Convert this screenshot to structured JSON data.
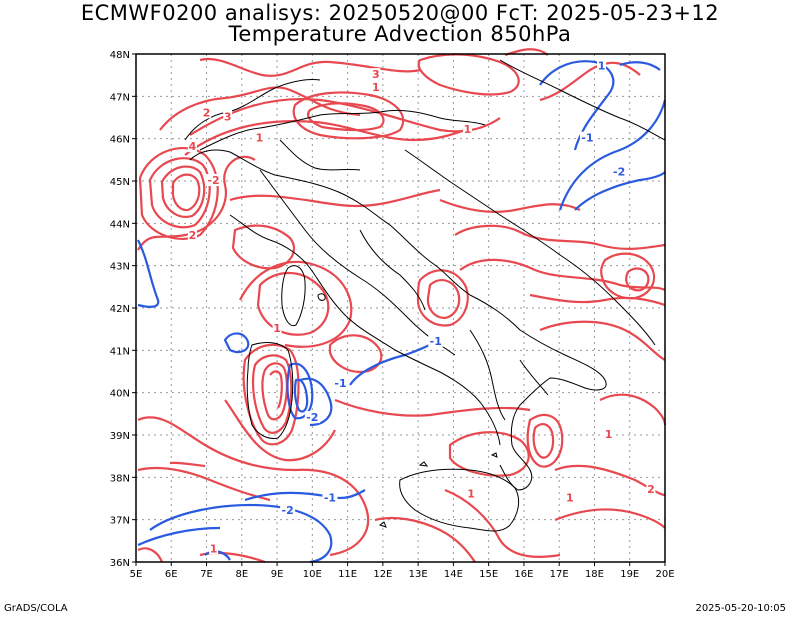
{
  "title_line1": "ECMWF0200 analisys: 20250520@00 FcT: 2025-05-23+12",
  "title_line2": "Temperature Advection 850hPa",
  "footer_left": "GrADS/COLA",
  "footer_right": "2025-05-20-10:05",
  "axes": {
    "lat_labels": [
      "48N",
      "47N",
      "46N",
      "45N",
      "44N",
      "43N",
      "42N",
      "41N",
      "40N",
      "39N",
      "38N",
      "37N",
      "36N"
    ],
    "lon_labels": [
      "5E",
      "6E",
      "7E",
      "8E",
      "9E",
      "10E",
      "11E",
      "12E",
      "13E",
      "14E",
      "15E",
      "16E",
      "17E",
      "18E",
      "19E",
      "20E"
    ],
    "lat_range": [
      36,
      48
    ],
    "lon_range": [
      5,
      20
    ],
    "grid": true
  },
  "colors": {
    "positive_contour": "#e8484f",
    "negative_contour": "#2a5ae0",
    "coastline": "#000000",
    "grid": "#9a9a9a"
  },
  "contour_labels": [
    {
      "text": "1",
      "lon": 11.8,
      "lat": 47.2,
      "sign": "pos"
    },
    {
      "text": "1",
      "lon": 18.2,
      "lat": 47.7,
      "sign": "neg"
    },
    {
      "text": "2",
      "lon": 7.0,
      "lat": 46.6,
      "sign": "pos"
    },
    {
      "text": "3",
      "lon": 7.6,
      "lat": 46.5,
      "sign": "pos"
    },
    {
      "text": "3",
      "lon": 11.8,
      "lat": 47.5,
      "sign": "pos"
    },
    {
      "text": "4",
      "lon": 6.6,
      "lat": 45.8,
      "sign": "pos"
    },
    {
      "text": "1",
      "lon": 14.4,
      "lat": 46.2,
      "sign": "pos"
    },
    {
      "text": "1",
      "lon": 8.5,
      "lat": 46.0,
      "sign": "pos"
    },
    {
      "text": "-1",
      "lon": 17.8,
      "lat": 46.0,
      "sign": "neg"
    },
    {
      "text": "-2",
      "lon": 18.7,
      "lat": 45.2,
      "sign": "neg"
    },
    {
      "text": "-2",
      "lon": 7.2,
      "lat": 45.0,
      "sign": "pos"
    },
    {
      "text": "2",
      "lon": 6.6,
      "lat": 43.7,
      "sign": "pos"
    },
    {
      "text": "1",
      "lon": 9.0,
      "lat": 41.5,
      "sign": "pos"
    },
    {
      "text": "-1",
      "lon": 10.8,
      "lat": 40.2,
      "sign": "neg"
    },
    {
      "text": "-1",
      "lon": 13.5,
      "lat": 41.2,
      "sign": "neg"
    },
    {
      "text": "-2",
      "lon": 10.0,
      "lat": 39.4,
      "sign": "neg"
    },
    {
      "text": "-1",
      "lon": 10.5,
      "lat": 37.5,
      "sign": "neg"
    },
    {
      "text": "-2",
      "lon": 9.3,
      "lat": 37.2,
      "sign": "neg"
    },
    {
      "text": "1",
      "lon": 18.4,
      "lat": 39.0,
      "sign": "pos"
    },
    {
      "text": "1",
      "lon": 17.3,
      "lat": 37.5,
      "sign": "pos"
    },
    {
      "text": "2",
      "lon": 19.6,
      "lat": 37.7,
      "sign": "pos"
    },
    {
      "text": "1",
      "lon": 14.5,
      "lat": 37.6,
      "sign": "pos"
    },
    {
      "text": "1",
      "lon": 7.2,
      "lat": 36.3,
      "sign": "pos"
    }
  ]
}
